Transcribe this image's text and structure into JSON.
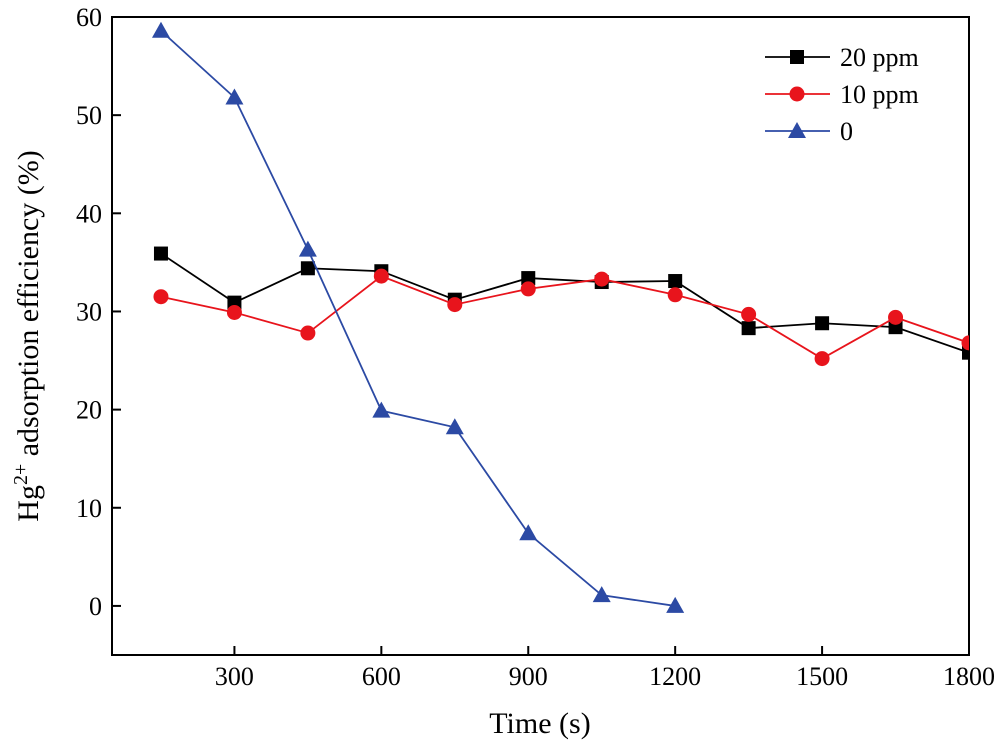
{
  "chart_data": {
    "type": "line",
    "xlabel": "Time (s)",
    "ylabel_parts": {
      "prefix": "Hg",
      "superscript": "2+",
      "suffix": " adsorption efficiency (%)"
    },
    "xlim": [
      50,
      1800
    ],
    "ylim": [
      -5,
      60
    ],
    "xticks": [
      300,
      600,
      900,
      1200,
      1500,
      1800
    ],
    "yticks": [
      0,
      10,
      20,
      30,
      40,
      50,
      60
    ],
    "legend_position": "top-right",
    "series": [
      {
        "name": "20 ppm",
        "color": "#000000",
        "line_color": "#000000",
        "marker": "square",
        "x": [
          150,
          300,
          450,
          600,
          750,
          900,
          1050,
          1200,
          1350,
          1500,
          1650,
          1800
        ],
        "y": [
          35.9,
          30.9,
          34.4,
          34.1,
          31.2,
          33.4,
          33.0,
          33.1,
          28.3,
          28.8,
          28.4,
          25.8
        ]
      },
      {
        "name": "10 ppm",
        "color": "#e8141c",
        "line_color": "#e8141c",
        "marker": "circle",
        "x": [
          150,
          300,
          450,
          600,
          750,
          900,
          1050,
          1200,
          1350,
          1500,
          1650,
          1800
        ],
        "y": [
          31.5,
          29.9,
          27.8,
          33.6,
          30.7,
          32.3,
          33.3,
          31.7,
          29.7,
          25.2,
          29.4,
          26.8
        ]
      },
      {
        "name": "0",
        "color": "#2c4aa4",
        "line_color": "#2c4aa4",
        "marker": "triangle",
        "x": [
          150,
          300,
          450,
          600,
          750,
          900,
          1050,
          1200
        ],
        "y": [
          58.6,
          51.8,
          36.3,
          19.9,
          18.2,
          7.4,
          1.1,
          0.0
        ]
      }
    ]
  }
}
